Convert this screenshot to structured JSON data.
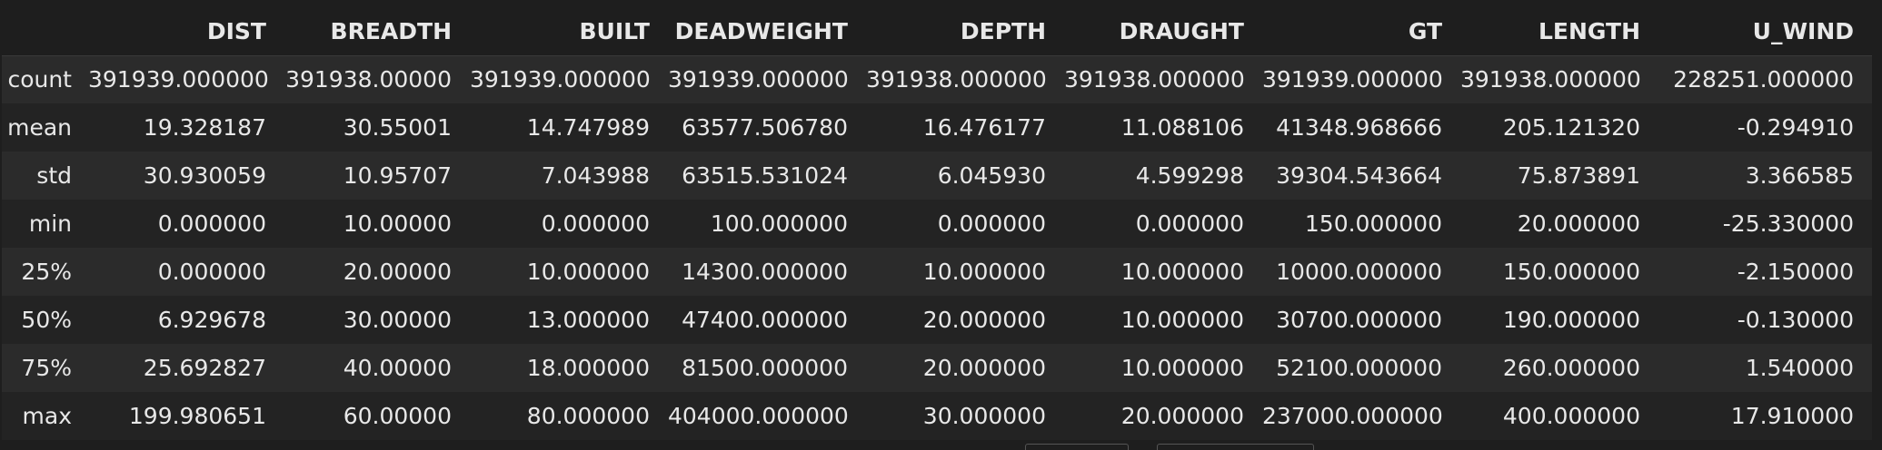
{
  "table": {
    "columns": [
      "",
      "DIST",
      "BREADTH",
      "BUILT",
      "DEADWEIGHT",
      "DEPTH",
      "DRAUGHT",
      "GT",
      "LENGTH",
      "U_WIND"
    ],
    "rows": [
      {
        "label": "count",
        "values": [
          "391939.000000",
          "391938.00000",
          "391939.000000",
          "391939.000000",
          "391938.000000",
          "391938.000000",
          "391939.000000",
          "391938.000000",
          "228251.000000"
        ]
      },
      {
        "label": "mean",
        "values": [
          "19.328187",
          "30.55001",
          "14.747989",
          "63577.506780",
          "16.476177",
          "11.088106",
          "41348.968666",
          "205.121320",
          "-0.294910"
        ]
      },
      {
        "label": "std",
        "values": [
          "30.930059",
          "10.95707",
          "7.043988",
          "63515.531024",
          "6.045930",
          "4.599298",
          "39304.543664",
          "75.873891",
          "3.366585"
        ]
      },
      {
        "label": "min",
        "values": [
          "0.000000",
          "10.00000",
          "0.000000",
          "100.000000",
          "0.000000",
          "0.000000",
          "150.000000",
          "20.000000",
          "-25.330000"
        ]
      },
      {
        "label": "25%",
        "values": [
          "0.000000",
          "20.00000",
          "10.000000",
          "14300.000000",
          "10.000000",
          "10.000000",
          "10000.000000",
          "150.000000",
          "-2.150000"
        ]
      },
      {
        "label": "50%",
        "values": [
          "6.929678",
          "30.00000",
          "13.000000",
          "47400.000000",
          "20.000000",
          "10.000000",
          "30700.000000",
          "190.000000",
          "-0.130000"
        ]
      },
      {
        "label": "75%",
        "values": [
          "25.692827",
          "40.00000",
          "18.000000",
          "81500.000000",
          "20.000000",
          "10.000000",
          "52100.000000",
          "260.000000",
          "1.540000"
        ]
      },
      {
        "label": "max",
        "values": [
          "199.980651",
          "60.00000",
          "80.000000",
          "404000.000000",
          "30.000000",
          "20.000000",
          "237000.000000",
          "400.000000",
          "17.910000"
        ]
      }
    ]
  }
}
